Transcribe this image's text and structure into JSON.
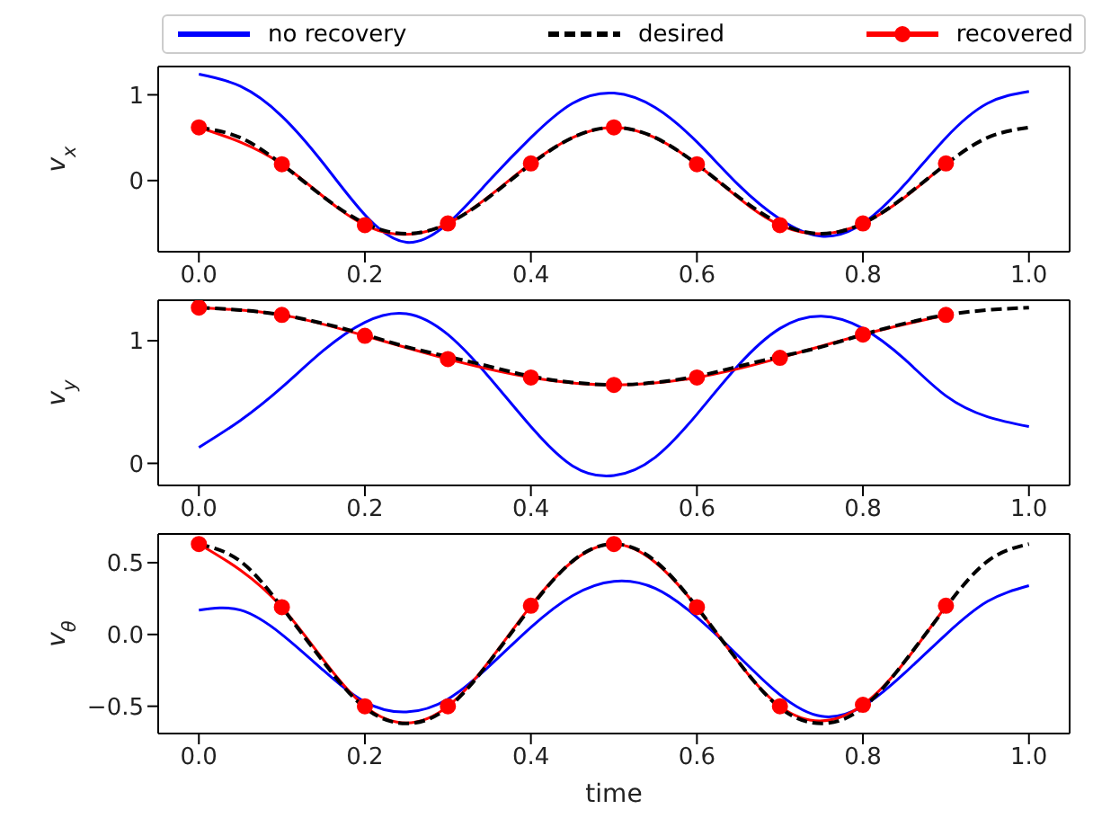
{
  "chart_data": [
    {
      "type": "line",
      "ylabel": "v$_{x}$",
      "legend": "top",
      "xlim": [
        -0.049,
        1.049
      ],
      "xticks": [
        {
          "value": 0,
          "label": "0.0"
        },
        {
          "value": 0.2,
          "label": "0.2"
        },
        {
          "value": 0.4,
          "label": "0.4"
        },
        {
          "value": 0.6,
          "label": "0.6"
        },
        {
          "value": 0.8,
          "label": "0.8"
        },
        {
          "value": 1,
          "label": "1.0"
        }
      ],
      "ylim": [
        -0.83,
        1.33
      ],
      "yticks": [
        {
          "value": 0,
          "label": "0"
        },
        {
          "value": 1,
          "label": "1"
        }
      ],
      "x": [
        0,
        0.05,
        0.1,
        0.15,
        0.2,
        0.25,
        0.3,
        0.35,
        0.4,
        0.45,
        0.5,
        0.55,
        0.6,
        0.65,
        0.7,
        0.75,
        0.8,
        0.85,
        0.9,
        0.95,
        1.0
      ],
      "series": [
        {
          "name": "no recovery",
          "color": "#0000ff",
          "marker": "none",
          "line_style": "solid",
          "values": [
            1.24,
            1.1,
            0.75,
            0.2,
            -0.4,
            -0.72,
            -0.5,
            0.0,
            0.5,
            0.9,
            1.02,
            0.85,
            0.45,
            -0.05,
            -0.45,
            -0.65,
            -0.5,
            -0.05,
            0.5,
            0.9,
            1.04
          ]
        },
        {
          "name": "desired",
          "color": "#000000",
          "marker": "none",
          "line_style": "dashed",
          "values": [
            0.62,
            0.5,
            0.19,
            -0.19,
            -0.5,
            -0.62,
            -0.5,
            -0.19,
            0.19,
            0.5,
            0.62,
            0.5,
            0.19,
            -0.19,
            -0.5,
            -0.62,
            -0.5,
            -0.19,
            0.19,
            0.5,
            0.62
          ]
        },
        {
          "name": "recovered",
          "color": "#ff0000",
          "marker": "circle",
          "line_style": "solid",
          "x": [
            0,
            0.1,
            0.2,
            0.3,
            0.4,
            0.5,
            0.6,
            0.7,
            0.8,
            0.9
          ],
          "values": [
            0.62,
            0.19,
            -0.52,
            -0.5,
            0.2,
            0.62,
            0.19,
            -0.52,
            -0.5,
            0.2
          ]
        }
      ]
    },
    {
      "type": "line",
      "ylabel": "v$_{y}$",
      "legend": false,
      "xlim": [
        -0.049,
        1.049
      ],
      "xticks": [
        {
          "value": 0,
          "label": "0.0"
        },
        {
          "value": 0.2,
          "label": "0.2"
        },
        {
          "value": 0.4,
          "label": "0.4"
        },
        {
          "value": 0.6,
          "label": "0.6"
        },
        {
          "value": 0.8,
          "label": "0.8"
        },
        {
          "value": 1,
          "label": "1.0"
        }
      ],
      "ylim": [
        -0.18,
        1.33
      ],
      "yticks": [
        {
          "value": 0,
          "label": "0"
        },
        {
          "value": 1,
          "label": "1"
        }
      ],
      "x": [
        0,
        0.05,
        0.1,
        0.15,
        0.2,
        0.25,
        0.3,
        0.35,
        0.4,
        0.45,
        0.5,
        0.55,
        0.6,
        0.65,
        0.7,
        0.75,
        0.8,
        0.85,
        0.9,
        0.95,
        1.0
      ],
      "series": [
        {
          "color": "#0000ff",
          "marker": "none",
          "line_style": "solid",
          "values": [
            0.13,
            0.35,
            0.62,
            0.92,
            1.15,
            1.22,
            1.05,
            0.7,
            0.3,
            -0.02,
            -0.1,
            0.05,
            0.4,
            0.8,
            1.1,
            1.2,
            1.1,
            0.85,
            0.55,
            0.38,
            0.3
          ]
        },
        {
          "color": "#000000",
          "marker": "none",
          "line_style": "dashed",
          "values": [
            1.27,
            1.25,
            1.21,
            1.14,
            1.05,
            0.95,
            0.87,
            0.79,
            0.71,
            0.66,
            0.64,
            0.66,
            0.71,
            0.79,
            0.87,
            0.95,
            1.05,
            1.14,
            1.21,
            1.25,
            1.27
          ]
        },
        {
          "color": "#ff0000",
          "marker": "circle",
          "line_style": "solid",
          "x": [
            0,
            0.1,
            0.2,
            0.3,
            0.4,
            0.5,
            0.6,
            0.7,
            0.8,
            0.9
          ],
          "values": [
            1.27,
            1.21,
            1.04,
            0.85,
            0.7,
            0.64,
            0.7,
            0.86,
            1.05,
            1.21
          ]
        }
      ]
    },
    {
      "type": "line",
      "ylabel": "v$_{θ}$",
      "xlabel": "time",
      "legend": false,
      "xlim": [
        -0.049,
        1.049
      ],
      "xticks": [
        {
          "value": 0,
          "label": "0.0"
        },
        {
          "value": 0.2,
          "label": "0.2"
        },
        {
          "value": 0.4,
          "label": "0.4"
        },
        {
          "value": 0.6,
          "label": "0.6"
        },
        {
          "value": 0.8,
          "label": "0.8"
        },
        {
          "value": 1,
          "label": "1.0"
        }
      ],
      "ylim": [
        -0.69,
        0.7
      ],
      "yticks": [
        {
          "value": -0.5,
          "label": "−0.5"
        },
        {
          "value": 0,
          "label": "0.0"
        },
        {
          "value": 0.5,
          "label": "0.5"
        }
      ],
      "x": [
        0,
        0.05,
        0.1,
        0.15,
        0.2,
        0.25,
        0.3,
        0.35,
        0.4,
        0.45,
        0.5,
        0.55,
        0.6,
        0.65,
        0.7,
        0.75,
        0.8,
        0.85,
        0.9,
        0.95,
        1.0
      ],
      "series": [
        {
          "color": "#0000ff",
          "marker": "none",
          "line_style": "solid",
          "values": [
            0.17,
            0.17,
            0.0,
            -0.25,
            -0.47,
            -0.54,
            -0.45,
            -0.22,
            0.05,
            0.27,
            0.37,
            0.32,
            0.12,
            -0.15,
            -0.42,
            -0.57,
            -0.5,
            -0.27,
            0.0,
            0.23,
            0.34
          ]
        },
        {
          "color": "#000000",
          "marker": "none",
          "line_style": "dashed",
          "values": [
            0.63,
            0.51,
            0.19,
            -0.19,
            -0.51,
            -0.62,
            -0.51,
            -0.19,
            0.19,
            0.51,
            0.63,
            0.51,
            0.19,
            -0.19,
            -0.51,
            -0.62,
            -0.51,
            -0.19,
            0.19,
            0.51,
            0.63
          ]
        },
        {
          "color": "#ff0000",
          "marker": "circle",
          "line_style": "solid",
          "x": [
            0,
            0.1,
            0.2,
            0.3,
            0.4,
            0.5,
            0.6,
            0.7,
            0.8,
            0.9
          ],
          "values": [
            0.63,
            0.19,
            -0.5,
            -0.5,
            0.2,
            0.63,
            0.19,
            -0.5,
            -0.49,
            0.2
          ]
        }
      ]
    }
  ]
}
